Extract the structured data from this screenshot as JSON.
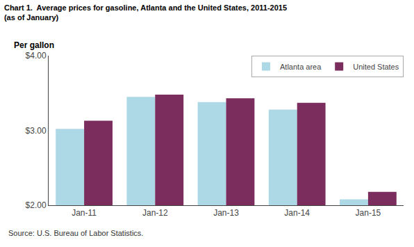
{
  "chart_data": {
    "type": "bar",
    "title": "Chart 1.  Average prices for gasoline, Atlanta and the United States, 2011-2015",
    "subtitle": "(as of January)",
    "ylabel": "Per gallon",
    "annotations": [
      "Source: U.S. Bureau of Labor Statistics."
    ],
    "categories": [
      "Jan-11",
      "Jan-12",
      "Jan-13",
      "Jan-14",
      "Jan-15"
    ],
    "series": [
      {
        "name": "Atlanta area",
        "color": "#ADD8E6",
        "values": [
          3.02,
          3.45,
          3.38,
          3.28,
          2.08
        ]
      },
      {
        "name": "United States",
        "color": "#7B2D5E",
        "values": [
          3.13,
          3.48,
          3.43,
          3.37,
          2.18
        ]
      }
    ],
    "ylim": [
      2.0,
      4.0
    ],
    "yticks": [
      {
        "value": 2.0,
        "label": "$2.00"
      },
      {
        "value": 3.0,
        "label": "$3.00"
      },
      {
        "value": 4.0,
        "label": "$4.00"
      }
    ],
    "grid": false,
    "legend": "upper right"
  }
}
